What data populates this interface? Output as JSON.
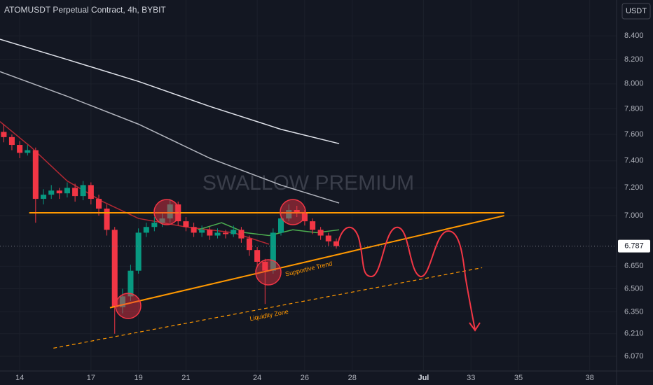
{
  "chart_data": {
    "type": "candlestick",
    "title": "ATOMUSDT Perpetual Contract, 4h, BYBIT",
    "currency": "USDT",
    "watermark": "SWALLOW PREMIUM",
    "log_scale": true,
    "grid": true,
    "up_color": "#089981",
    "down_color": "#f23645",
    "xlim": [
      13.17,
      39.13
    ],
    "xticks": [
      14,
      17,
      19,
      21,
      24,
      26,
      28,
      {
        "value": 31,
        "label": "Jul"
      },
      33,
      35,
      38
    ],
    "ylim": [
      5.98,
      8.71
    ],
    "yticks": [
      {
        "value": 8.4,
        "label": "8.400"
      },
      {
        "value": 8.2,
        "label": "8.200"
      },
      {
        "value": 8.0,
        "label": "8.000"
      },
      {
        "value": 7.8,
        "label": "7.800"
      },
      {
        "value": 7.6,
        "label": "7.600"
      },
      {
        "value": 7.4,
        "label": "7.400"
      },
      {
        "value": 7.2,
        "label": "7.200"
      },
      {
        "value": 7.0,
        "label": "7.000"
      },
      {
        "value": 6.65,
        "label": "6.650"
      },
      {
        "value": 6.5,
        "label": "6.500"
      },
      {
        "value": 6.35,
        "label": "6.350"
      },
      {
        "value": 6.21,
        "label": "6.210"
      },
      {
        "value": 6.07,
        "label": "6.070"
      }
    ],
    "last_price": {
      "value": 6.787,
      "label": "6.787"
    },
    "candles": {
      "x": [
        13.33,
        13.67,
        14.0,
        14.33,
        14.67,
        15.0,
        15.33,
        15.67,
        16.0,
        16.33,
        16.67,
        17.0,
        17.33,
        17.67,
        18.0,
        18.33,
        18.67,
        19.0,
        19.33,
        19.67,
        20.0,
        20.33,
        20.67,
        21.0,
        21.33,
        21.67,
        22.0,
        22.33,
        22.67,
        23.0,
        23.33,
        23.67,
        24.0,
        24.33,
        24.67,
        25.0,
        25.33,
        25.67,
        26.0,
        26.33,
        26.67,
        27.0,
        27.33
      ],
      "open": [
        7.62,
        7.58,
        7.52,
        7.46,
        7.48,
        7.12,
        7.15,
        7.18,
        7.16,
        7.2,
        7.14,
        7.22,
        7.12,
        7.05,
        6.9,
        6.38,
        6.45,
        6.62,
        6.88,
        6.92,
        6.95,
        6.98,
        7.08,
        6.96,
        6.92,
        6.88,
        6.9,
        6.86,
        6.88,
        6.87,
        6.9,
        6.84,
        6.76,
        6.68,
        6.62,
        6.88,
        6.98,
        7.04,
        7.02,
        6.96,
        6.9,
        6.86,
        6.82
      ],
      "high": [
        7.68,
        7.6,
        7.55,
        7.52,
        7.5,
        7.19,
        7.22,
        7.2,
        7.24,
        7.23,
        7.25,
        7.24,
        7.15,
        7.08,
        6.92,
        6.5,
        6.66,
        6.91,
        6.95,
        6.99,
        7.02,
        7.12,
        7.1,
        6.99,
        6.95,
        6.93,
        6.92,
        6.91,
        6.9,
        6.93,
        6.92,
        6.86,
        6.78,
        6.7,
        6.91,
        7.02,
        7.08,
        7.07,
        7.04,
        6.98,
        6.92,
        6.88,
        6.84
      ],
      "low": [
        7.54,
        7.48,
        7.42,
        7.44,
        6.95,
        7.08,
        7.12,
        7.12,
        7.13,
        7.1,
        7.11,
        7.08,
        7.0,
        6.86,
        6.21,
        6.34,
        6.42,
        6.6,
        6.85,
        6.89,
        6.92,
        6.95,
        6.93,
        6.89,
        6.85,
        6.85,
        6.83,
        6.84,
        6.84,
        6.85,
        6.81,
        6.72,
        6.64,
        6.4,
        6.6,
        6.86,
        6.96,
        6.99,
        6.93,
        6.87,
        6.83,
        6.79,
        6.77
      ],
      "close": [
        7.58,
        7.52,
        7.46,
        7.48,
        7.12,
        7.15,
        7.18,
        7.16,
        7.2,
        7.14,
        7.22,
        7.12,
        7.05,
        6.9,
        6.38,
        6.45,
        6.62,
        6.88,
        6.92,
        6.95,
        6.98,
        7.08,
        6.96,
        6.92,
        6.88,
        6.9,
        6.86,
        6.88,
        6.87,
        6.9,
        6.84,
        6.76,
        6.68,
        6.62,
        6.88,
        6.98,
        7.04,
        7.02,
        6.96,
        6.9,
        6.86,
        6.82,
        6.787
      ]
    },
    "series": [
      {
        "color": "#e0e3eb",
        "x": [
          13.17,
          16,
          19,
          22,
          25,
          27.45
        ],
        "values": [
          8.37,
          8.2,
          8.02,
          7.82,
          7.64,
          7.53
        ]
      },
      {
        "color": "#b2b5be",
        "x": [
          13.17,
          16,
          19,
          22,
          25,
          27.45
        ],
        "values": [
          8.1,
          7.9,
          7.68,
          7.42,
          7.22,
          7.09
        ]
      },
      {
        "color": "#b22833",
        "x": [
          13.17,
          14.5,
          16,
          17.5,
          19,
          21,
          23,
          24.5
        ],
        "values": [
          7.7,
          7.5,
          7.25,
          7.1,
          6.98,
          6.92,
          6.88,
          6.8
        ]
      },
      {
        "color": "#4caf50",
        "x": [
          21.5,
          22.5,
          23.5,
          24.5,
          25.5,
          26.5,
          27.45
        ],
        "values": [
          6.9,
          6.95,
          6.88,
          6.86,
          6.9,
          6.88,
          6.9
        ]
      }
    ],
    "drawings": [
      {
        "color": "#ff9800",
        "style": "solid",
        "x": [
          14.4,
          34.4
        ],
        "values": [
          7.02,
          7.02
        ]
      },
      {
        "label": "Supportive Trend",
        "color": "#ff9800",
        "style": "solid",
        "x": [
          17.8,
          34.4
        ],
        "values": [
          6.376,
          7.0
        ]
      },
      {
        "label": "Liquidity Zone",
        "color": "#ff9800",
        "style": "dashed",
        "x": [
          15.42,
          33.47
        ],
        "values": [
          6.12,
          6.64
        ]
      }
    ]
  }
}
